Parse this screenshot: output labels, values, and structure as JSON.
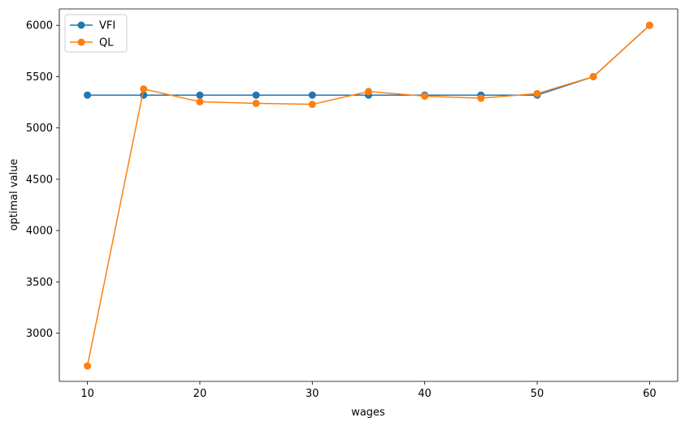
{
  "chart_data": {
    "type": "line",
    "title": "",
    "xlabel": "wages",
    "ylabel": "optimal value",
    "x": [
      10,
      15,
      20,
      25,
      30,
      35,
      40,
      45,
      50,
      55,
      60
    ],
    "xlim": [
      7.5,
      62.5
    ],
    "ylim": [
      2530,
      6160
    ],
    "xticks": [
      10,
      20,
      30,
      40,
      50,
      60
    ],
    "yticks": [
      3000,
      3500,
      4000,
      4500,
      5000,
      5500,
      6000
    ],
    "grid": false,
    "legend_position": "top-left",
    "series": [
      {
        "name": "VFI",
        "color": "#1f77b4",
        "marker": "circle",
        "values": [
          5320,
          5320,
          5320,
          5320,
          5320,
          5320,
          5320,
          5320,
          5320,
          5500,
          6000
        ]
      },
      {
        "name": "QL",
        "color": "#ff7f0e",
        "marker": "circle",
        "values": [
          2680,
          5380,
          5255,
          5240,
          5230,
          5355,
          5310,
          5290,
          5335,
          5500,
          6000
        ]
      }
    ]
  }
}
